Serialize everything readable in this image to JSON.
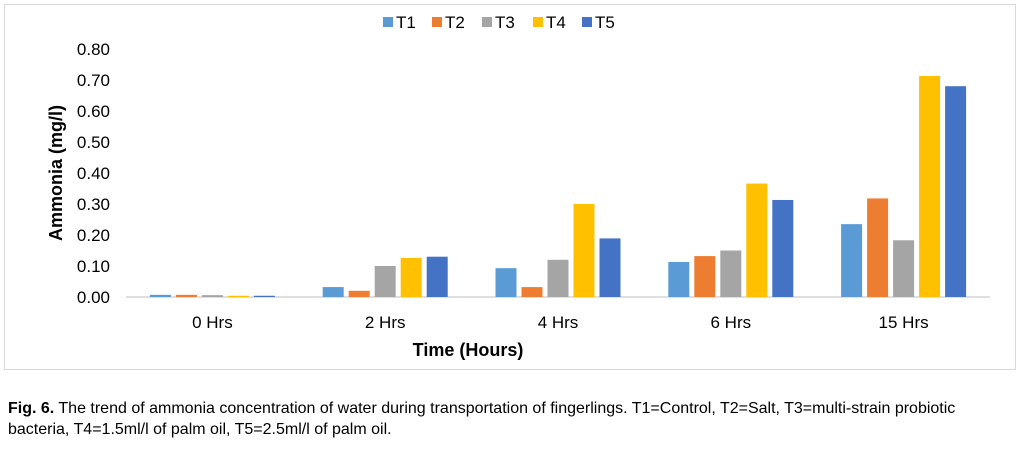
{
  "chart_data": {
    "type": "bar",
    "categories": [
      "0 Hrs",
      "2 Hrs",
      "4 Hrs",
      "6 Hrs",
      "15 Hrs"
    ],
    "series": [
      {
        "name": "T1",
        "color": "#5B9BD5",
        "values": [
          0.007,
          0.032,
          0.093,
          0.113,
          0.235
        ]
      },
      {
        "name": "T2",
        "color": "#ED7D31",
        "values": [
          0.007,
          0.02,
          0.032,
          0.132,
          0.318
        ]
      },
      {
        "name": "T3",
        "color": "#A5A5A5",
        "values": [
          0.006,
          0.1,
          0.12,
          0.15,
          0.183
        ]
      },
      {
        "name": "T4",
        "color": "#FFC000",
        "values": [
          0.004,
          0.126,
          0.3,
          0.366,
          0.713
        ]
      },
      {
        "name": "T5",
        "color": "#4472C4",
        "values": [
          0.004,
          0.13,
          0.189,
          0.313,
          0.68
        ]
      }
    ],
    "yticks": [
      "0.00",
      "0.10",
      "0.20",
      "0.30",
      "0.40",
      "0.50",
      "0.60",
      "0.70",
      "0.80"
    ],
    "ylim": [
      0,
      0.8
    ],
    "ylabel": "Ammonia (mg/l)",
    "xlabel": "Time (Hours)",
    "legend_position": "top-center",
    "grid": false
  },
  "caption": {
    "label": "Fig. 6.",
    "text": " The trend of ammonia concentration of water during transportation of fingerlings. T1=Control, T2=Salt, T3=multi-strain probiotic bacteria, T4=1.5ml/l of palm oil, T5=2.5ml/l of palm oil."
  }
}
